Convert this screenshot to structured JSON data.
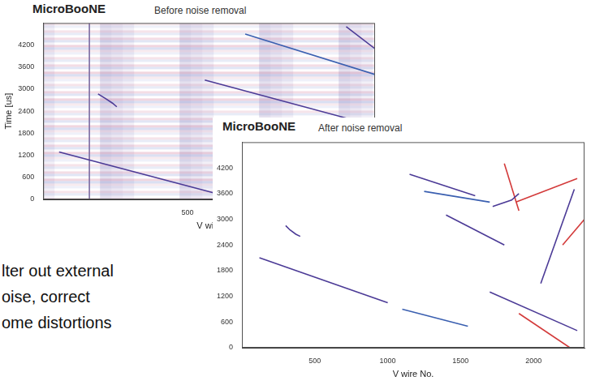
{
  "slide_text": [
    "lter out external",
    "oise, correct",
    "ome distortions"
  ],
  "chart_data": [
    {
      "type": "line",
      "brand": "MicroBooNE",
      "title": "Before noise removal",
      "x_label": "V wire",
      "y_label": "Time [us]",
      "xlim": [
        0,
        1150
      ],
      "xticks": [
        500
      ],
      "ylim": [
        0,
        4800
      ],
      "yticks": [
        0,
        600,
        1200,
        1800,
        2400,
        3000,
        3600,
        4200
      ],
      "grid": false,
      "series": [
        {
          "color": "#4b3a96",
          "x": [
            55,
            610
          ],
          "values": [
            1290,
            140
          ]
        },
        {
          "color": "#4b3a96",
          "x": [
            190,
            215,
            240,
            255
          ],
          "values": [
            2870,
            2750,
            2620,
            2520
          ]
        },
        {
          "color": "#7a6aa0",
          "x": [
            160,
            160
          ],
          "values": [
            0,
            4800
          ]
        },
        {
          "color": "#4b3a96",
          "x": [
            560,
            1150
          ],
          "values": [
            3250,
            2000
          ]
        },
        {
          "color": "#3a5fb0",
          "x": [
            700,
            1150
          ],
          "values": [
            4500,
            3400
          ]
        },
        {
          "color": "#4b3a96",
          "x": [
            1050,
            1150
          ],
          "values": [
            4700,
            4100
          ]
        }
      ]
    },
    {
      "type": "line",
      "brand": "MicroBooNE",
      "title": "After noise removal",
      "x_label": "V wire No.",
      "xlim": [
        0,
        2350
      ],
      "xticks": [
        500,
        1000,
        1500,
        2000
      ],
      "ylim": [
        0,
        4800
      ],
      "yticks": [
        0,
        600,
        1200,
        1800,
        2400,
        3000,
        3600,
        4200
      ],
      "grid": false,
      "series": [
        {
          "color": "#4b3a96",
          "x": [
            120,
            1000
          ],
          "values": [
            2100,
            1050
          ]
        },
        {
          "color": "#4b3a96",
          "x": [
            300,
            330,
            370,
            400
          ],
          "values": [
            2850,
            2750,
            2650,
            2600
          ]
        },
        {
          "color": "#4b3a96",
          "x": [
            1150,
            1600
          ],
          "values": [
            4050,
            3550
          ]
        },
        {
          "color": "#3a5fb0",
          "x": [
            1250,
            1700
          ],
          "values": [
            3650,
            3400
          ]
        },
        {
          "color": "#4b3a96",
          "x": [
            1720,
            1850,
            1900
          ],
          "values": [
            3300,
            3450,
            3600
          ]
        },
        {
          "color": "#d33a3a",
          "x": [
            1880,
            2300
          ],
          "values": [
            3400,
            3950
          ]
        },
        {
          "color": "#d33a3a",
          "x": [
            1800,
            1900
          ],
          "values": [
            4300,
            3200
          ]
        },
        {
          "color": "#4b3a96",
          "x": [
            2280,
            2050
          ],
          "values": [
            3700,
            1500
          ]
        },
        {
          "color": "#4b3a96",
          "x": [
            1700,
            2300
          ],
          "values": [
            1300,
            400
          ]
        },
        {
          "color": "#d33a3a",
          "x": [
            1900,
            2250
          ],
          "values": [
            800,
            0
          ]
        },
        {
          "color": "#3a5fb0",
          "x": [
            1100,
            1550
          ],
          "values": [
            900,
            500
          ]
        },
        {
          "color": "#4b3a96",
          "x": [
            1400,
            1800
          ],
          "values": [
            3100,
            2400
          ]
        },
        {
          "color": "#d33a3a",
          "x": [
            2200,
            2350
          ],
          "values": [
            2400,
            3000
          ]
        }
      ]
    }
  ]
}
